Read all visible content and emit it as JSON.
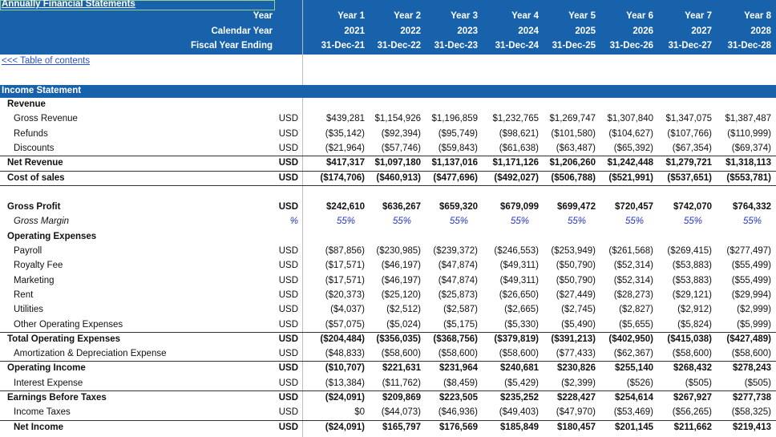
{
  "header": {
    "title": "Annually Financial Statements",
    "rows": [
      {
        "label": "Year",
        "values": [
          "Year 1",
          "Year 2",
          "Year 3",
          "Year 4",
          "Year 5",
          "Year 6",
          "Year 7",
          "Year 8"
        ]
      },
      {
        "label": "Calendar Year",
        "values": [
          "2021",
          "2022",
          "2023",
          "2024",
          "2025",
          "2026",
          "2027",
          "2028"
        ]
      },
      {
        "label": "Fiscal Year Ending",
        "values": [
          "31-Dec-21",
          "31-Dec-22",
          "31-Dec-23",
          "31-Dec-24",
          "31-Dec-25",
          "31-Dec-26",
          "31-Dec-27",
          "31-Dec-28"
        ]
      }
    ]
  },
  "link": "<<< Table of contents",
  "section": "Income Statement",
  "rows": [
    {
      "label": "Revenue"
    },
    {
      "label": "Gross Revenue",
      "unit": "USD",
      "values": [
        "$439,281",
        "$1,154,926",
        "$1,196,859",
        "$1,232,765",
        "$1,269,747",
        "$1,307,840",
        "$1,347,075",
        "$1,387,487"
      ]
    },
    {
      "label": "Refunds",
      "unit": "USD",
      "values": [
        "($35,142)",
        "($92,394)",
        "($95,749)",
        "($98,621)",
        "($101,580)",
        "($104,627)",
        "($107,766)",
        "($110,999)"
      ]
    },
    {
      "label": "Discounts",
      "unit": "USD",
      "values": [
        "($21,964)",
        "($57,746)",
        "($59,843)",
        "($61,638)",
        "($63,487)",
        "($65,392)",
        "($67,354)",
        "($69,374)"
      ]
    },
    {
      "label": "Net Revenue",
      "unit": "USD",
      "values": [
        "$417,317",
        "$1,097,180",
        "$1,137,016",
        "$1,171,126",
        "$1,206,260",
        "$1,242,448",
        "$1,279,721",
        "$1,318,113"
      ]
    },
    {
      "label": "Cost of sales",
      "unit": "USD",
      "values": [
        "($174,706)",
        "($460,913)",
        "($477,696)",
        "($492,027)",
        "($506,788)",
        "($521,991)",
        "($537,651)",
        "($553,781)"
      ]
    },
    {
      "label": "Gross Profit",
      "unit": "USD",
      "values": [
        "$242,610",
        "$636,267",
        "$659,320",
        "$679,099",
        "$699,472",
        "$720,457",
        "$742,070",
        "$764,332"
      ]
    },
    {
      "label": "Gross Margin",
      "unit": "%",
      "values": [
        "55%",
        "55%",
        "55%",
        "55%",
        "55%",
        "55%",
        "55%",
        "55%"
      ]
    },
    {
      "label": "Operating Expenses"
    },
    {
      "label": "Payroll",
      "unit": "USD",
      "values": [
        "($87,856)",
        "($230,985)",
        "($239,372)",
        "($246,553)",
        "($253,949)",
        "($261,568)",
        "($269,415)",
        "($277,497)"
      ]
    },
    {
      "label": "Royalty Fee",
      "unit": "USD",
      "values": [
        "($17,571)",
        "($46,197)",
        "($47,874)",
        "($49,311)",
        "($50,790)",
        "($52,314)",
        "($53,883)",
        "($55,499)"
      ]
    },
    {
      "label": "Marketing",
      "unit": "USD",
      "values": [
        "($17,571)",
        "($46,197)",
        "($47,874)",
        "($49,311)",
        "($50,790)",
        "($52,314)",
        "($53,883)",
        "($55,499)"
      ]
    },
    {
      "label": "Rent",
      "unit": "USD",
      "values": [
        "($20,373)",
        "($25,120)",
        "($25,873)",
        "($26,650)",
        "($27,449)",
        "($28,273)",
        "($29,121)",
        "($29,994)"
      ]
    },
    {
      "label": "Utilities",
      "unit": "USD",
      "values": [
        "($4,037)",
        "($2,512)",
        "($2,587)",
        "($2,665)",
        "($2,745)",
        "($2,827)",
        "($2,912)",
        "($2,999)"
      ]
    },
    {
      "label": "Other Operating Expenses",
      "unit": "USD",
      "values": [
        "($57,075)",
        "($5,024)",
        "($5,175)",
        "($5,330)",
        "($5,490)",
        "($5,655)",
        "($5,824)",
        "($5,999)"
      ]
    },
    {
      "label": "Total Operating Expenses",
      "unit": "USD",
      "values": [
        "($204,484)",
        "($356,035)",
        "($368,756)",
        "($379,819)",
        "($391,213)",
        "($402,950)",
        "($415,038)",
        "($427,489)"
      ]
    },
    {
      "label": "Amortization & Depreciation Expense",
      "unit": "USD",
      "values": [
        "($48,833)",
        "($58,600)",
        "($58,600)",
        "($58,600)",
        "($77,433)",
        "($62,367)",
        "($58,600)",
        "($58,600)"
      ]
    },
    {
      "label": "Operating Income",
      "unit": "USD",
      "values": [
        "($10,707)",
        "$221,631",
        "$231,964",
        "$240,681",
        "$230,826",
        "$255,140",
        "$268,432",
        "$278,243"
      ]
    },
    {
      "label": "Interest Expense",
      "unit": "USD",
      "values": [
        "($13,384)",
        "($11,762)",
        "($8,459)",
        "($5,429)",
        "($2,399)",
        "($526)",
        "($505)",
        "($505)"
      ]
    },
    {
      "label": "Earnings Before Taxes",
      "unit": "USD",
      "values": [
        "($24,091)",
        "$209,869",
        "$223,505",
        "$235,252",
        "$228,427",
        "$254,614",
        "$267,927",
        "$277,738"
      ]
    },
    {
      "label": "Income Taxes",
      "unit": "USD",
      "values": [
        "$0",
        "($44,073)",
        "($46,936)",
        "($49,403)",
        "($47,970)",
        "($53,469)",
        "($56,265)",
        "($58,325)"
      ]
    },
    {
      "label": "Net Income",
      "unit": "USD",
      "values": [
        "($24,091)",
        "$165,797",
        "$176,569",
        "$185,849",
        "$180,457",
        "$201,145",
        "$211,662",
        "$219,413"
      ]
    }
  ]
}
